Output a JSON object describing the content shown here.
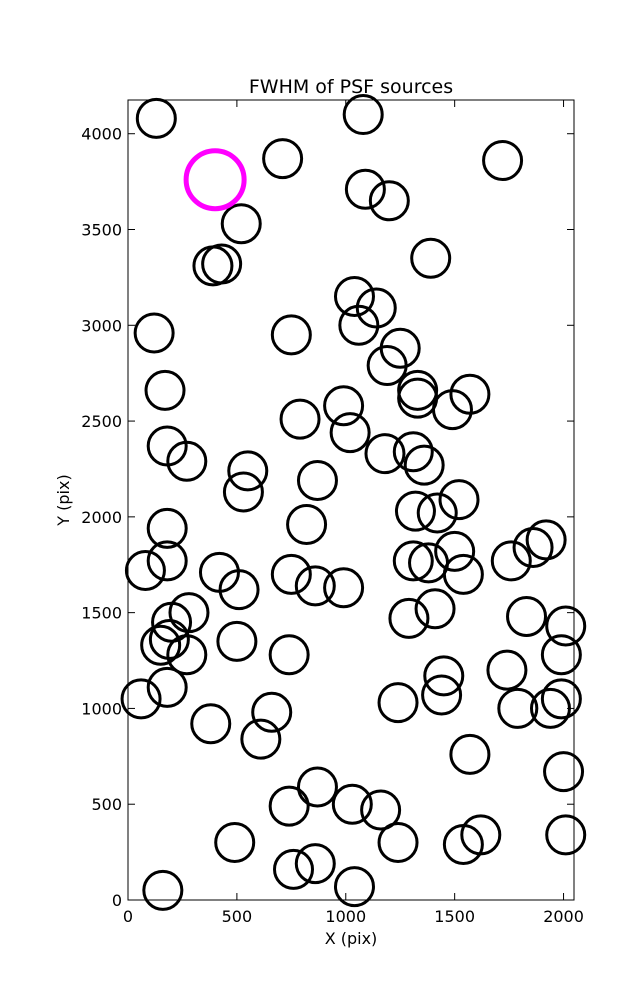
{
  "chart_data": {
    "type": "scatter",
    "title": "FWHM of PSF sources",
    "xlabel": "X (pix)",
    "ylabel": "Y (pix)",
    "xlim": [
      0,
      2048
    ],
    "ylim": [
      0,
      4176
    ],
    "x_ticks": [
      0,
      500,
      1000,
      1500,
      2000
    ],
    "y_ticks": [
      0,
      500,
      1000,
      1500,
      2000,
      2500,
      3000,
      3500,
      4000
    ],
    "grid": false,
    "marker": "open circle",
    "marker_color": "#000000",
    "series": [
      {
        "color": "#000000",
        "points": [
          {
            "x": 130,
            "y": 4080
          },
          {
            "x": 1080,
            "y": 4100
          },
          {
            "x": 710,
            "y": 3870
          },
          {
            "x": 1720,
            "y": 3860
          },
          {
            "x": 1090,
            "y": 3710
          },
          {
            "x": 1200,
            "y": 3650
          },
          {
            "x": 520,
            "y": 3530
          },
          {
            "x": 1390,
            "y": 3350
          },
          {
            "x": 390,
            "y": 3310
          },
          {
            "x": 430,
            "y": 3320
          },
          {
            "x": 1040,
            "y": 3150
          },
          {
            "x": 1140,
            "y": 3090
          },
          {
            "x": 1060,
            "y": 3000
          },
          {
            "x": 120,
            "y": 2960
          },
          {
            "x": 750,
            "y": 2950
          },
          {
            "x": 1250,
            "y": 2880
          },
          {
            "x": 1190,
            "y": 2790
          },
          {
            "x": 170,
            "y": 2660
          },
          {
            "x": 1330,
            "y": 2660
          },
          {
            "x": 1330,
            "y": 2620
          },
          {
            "x": 1570,
            "y": 2640
          },
          {
            "x": 990,
            "y": 2580
          },
          {
            "x": 1490,
            "y": 2560
          },
          {
            "x": 790,
            "y": 2510
          },
          {
            "x": 1020,
            "y": 2440
          },
          {
            "x": 180,
            "y": 2370
          },
          {
            "x": 1180,
            "y": 2330
          },
          {
            "x": 1310,
            "y": 2340
          },
          {
            "x": 270,
            "y": 2290
          },
          {
            "x": 1360,
            "y": 2270
          },
          {
            "x": 550,
            "y": 2240
          },
          {
            "x": 870,
            "y": 2190
          },
          {
            "x": 530,
            "y": 2130
          },
          {
            "x": 1520,
            "y": 2090
          },
          {
            "x": 1320,
            "y": 2030
          },
          {
            "x": 1420,
            "y": 2020
          },
          {
            "x": 820,
            "y": 1960
          },
          {
            "x": 180,
            "y": 1940
          },
          {
            "x": 1920,
            "y": 1880
          },
          {
            "x": 1860,
            "y": 1840
          },
          {
            "x": 1500,
            "y": 1820
          },
          {
            "x": 180,
            "y": 1770
          },
          {
            "x": 1760,
            "y": 1770
          },
          {
            "x": 1310,
            "y": 1770
          },
          {
            "x": 1380,
            "y": 1760
          },
          {
            "x": 80,
            "y": 1720
          },
          {
            "x": 420,
            "y": 1710
          },
          {
            "x": 750,
            "y": 1700
          },
          {
            "x": 1540,
            "y": 1700
          },
          {
            "x": 860,
            "y": 1640
          },
          {
            "x": 990,
            "y": 1630
          },
          {
            "x": 510,
            "y": 1620
          },
          {
            "x": 1410,
            "y": 1520
          },
          {
            "x": 280,
            "y": 1500
          },
          {
            "x": 1830,
            "y": 1480
          },
          {
            "x": 1290,
            "y": 1470
          },
          {
            "x": 200,
            "y": 1450
          },
          {
            "x": 2010,
            "y": 1430
          },
          {
            "x": 190,
            "y": 1360
          },
          {
            "x": 500,
            "y": 1350
          },
          {
            "x": 150,
            "y": 1330
          },
          {
            "x": 1990,
            "y": 1280
          },
          {
            "x": 270,
            "y": 1280
          },
          {
            "x": 740,
            "y": 1280
          },
          {
            "x": 1740,
            "y": 1200
          },
          {
            "x": 1450,
            "y": 1170
          },
          {
            "x": 180,
            "y": 1110
          },
          {
            "x": 1440,
            "y": 1070
          },
          {
            "x": 60,
            "y": 1050
          },
          {
            "x": 1990,
            "y": 1050
          },
          {
            "x": 1240,
            "y": 1030
          },
          {
            "x": 1790,
            "y": 1000
          },
          {
            "x": 1940,
            "y": 1000
          },
          {
            "x": 660,
            "y": 980
          },
          {
            "x": 380,
            "y": 920
          },
          {
            "x": 610,
            "y": 840
          },
          {
            "x": 1570,
            "y": 760
          },
          {
            "x": 2000,
            "y": 670
          },
          {
            "x": 870,
            "y": 590
          },
          {
            "x": 740,
            "y": 490
          },
          {
            "x": 1030,
            "y": 500
          },
          {
            "x": 1160,
            "y": 470
          },
          {
            "x": 1620,
            "y": 340
          },
          {
            "x": 2010,
            "y": 340
          },
          {
            "x": 490,
            "y": 300
          },
          {
            "x": 1240,
            "y": 300
          },
          {
            "x": 1540,
            "y": 290
          },
          {
            "x": 860,
            "y": 190
          },
          {
            "x": 760,
            "y": 160
          },
          {
            "x": 1040,
            "y": 70
          },
          {
            "x": 160,
            "y": 50
          }
        ]
      },
      {
        "color": "#ff00ff",
        "points": [
          {
            "x": 400,
            "y": 3760
          }
        ]
      }
    ]
  }
}
